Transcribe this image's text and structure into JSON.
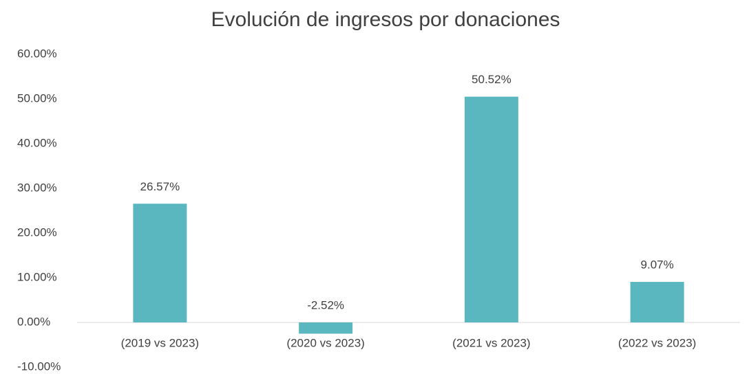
{
  "chart_data": {
    "type": "bar",
    "title": "Evolución de ingresos por donaciones",
    "categories": [
      "(2019 vs 2023)",
      "(2020 vs 2023)",
      "(2021 vs 2023)",
      "(2022 vs 2023)"
    ],
    "values": [
      26.57,
      -2.52,
      50.52,
      9.07
    ],
    "value_labels": [
      "26.57%",
      "-2.52%",
      "50.52%",
      "9.07%"
    ],
    "color": "#5ab7bf",
    "ylim": [
      -10,
      60
    ],
    "yticks": [
      {
        "value": -10,
        "label": "-10.00%"
      },
      {
        "value": 0,
        "label": "0.00%"
      },
      {
        "value": 10,
        "label": "10.00%"
      },
      {
        "value": 20,
        "label": "20.00%"
      },
      {
        "value": 30,
        "label": "30.00%"
      },
      {
        "value": 40,
        "label": "40.00%"
      },
      {
        "value": 50,
        "label": "50.00%"
      },
      {
        "value": 60,
        "label": "60.00%"
      }
    ],
    "grid": false
  }
}
